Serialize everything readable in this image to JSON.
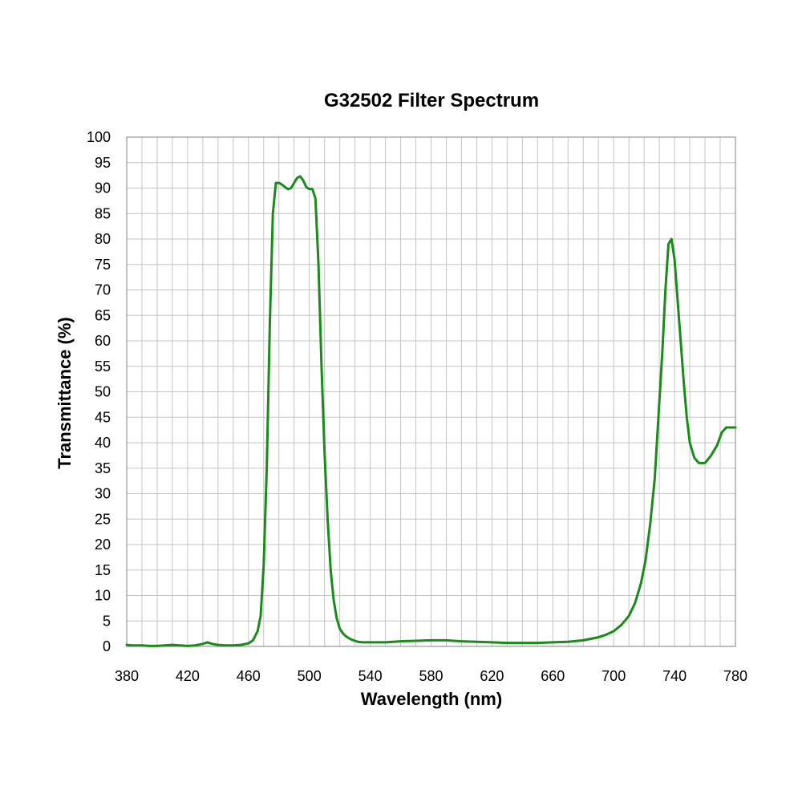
{
  "chart_data": {
    "type": "line",
    "title": "G32502 Filter Spectrum",
    "xlabel": "Wavelength (nm)",
    "ylabel": "Transmittance (%)",
    "xlim": [
      380,
      780
    ],
    "ylim": [
      0,
      100
    ],
    "x_ticks": [
      380,
      420,
      460,
      500,
      540,
      580,
      620,
      660,
      700,
      740,
      780
    ],
    "y_ticks": [
      0,
      5,
      10,
      15,
      20,
      25,
      30,
      35,
      40,
      45,
      50,
      55,
      60,
      65,
      70,
      75,
      80,
      85,
      90,
      95,
      100
    ],
    "grid": true,
    "minor_x_grid_step": 10,
    "series_color": "#1a8a1a",
    "series": [
      {
        "x": [
          380,
          383,
          386,
          390,
          395,
          400,
          405,
          410,
          415,
          420,
          425,
          430,
          433,
          436,
          440,
          445,
          450,
          455,
          460,
          463,
          466,
          468,
          470,
          472,
          474,
          476,
          478,
          480,
          482,
          484,
          486,
          488,
          490,
          492,
          494,
          496,
          498,
          500,
          502,
          504,
          506,
          508,
          510,
          512,
          514,
          516,
          518,
          520,
          522,
          524,
          526,
          528,
          530,
          532,
          535,
          540,
          545,
          550,
          560,
          570,
          580,
          590,
          600,
          610,
          620,
          630,
          640,
          650,
          660,
          670,
          680,
          690,
          695,
          700,
          705,
          710,
          714,
          718,
          721,
          724,
          727,
          730,
          732,
          734,
          736,
          738,
          740,
          742,
          744,
          746,
          748,
          750,
          753,
          756,
          760,
          764,
          768,
          771,
          774,
          778,
          780
        ],
        "y": [
          0.3,
          0.2,
          0.2,
          0.2,
          0.1,
          0.1,
          0.2,
          0.3,
          0.2,
          0.1,
          0.2,
          0.5,
          0.8,
          0.5,
          0.3,
          0.2,
          0.2,
          0.3,
          0.6,
          1.2,
          3,
          6,
          16,
          35,
          63,
          85,
          91,
          91,
          90.7,
          90.2,
          89.8,
          90,
          91,
          92,
          92.3,
          91.5,
          90.2,
          89.8,
          89.8,
          88,
          75,
          55,
          38,
          25,
          15,
          9,
          5.5,
          3.5,
          2.6,
          2,
          1.6,
          1.3,
          1.1,
          0.9,
          0.8,
          0.8,
          0.8,
          0.8,
          1,
          1.1,
          1.2,
          1.2,
          1,
          0.9,
          0.8,
          0.7,
          0.7,
          0.7,
          0.8,
          0.9,
          1.2,
          1.8,
          2.3,
          3,
          4.2,
          6,
          8.5,
          12.5,
          17,
          24,
          33,
          48,
          58,
          70,
          79,
          80,
          76,
          68,
          60,
          52,
          45,
          40,
          37,
          36,
          36,
          37.5,
          39.5,
          42,
          43,
          43,
          43
        ]
      }
    ]
  }
}
